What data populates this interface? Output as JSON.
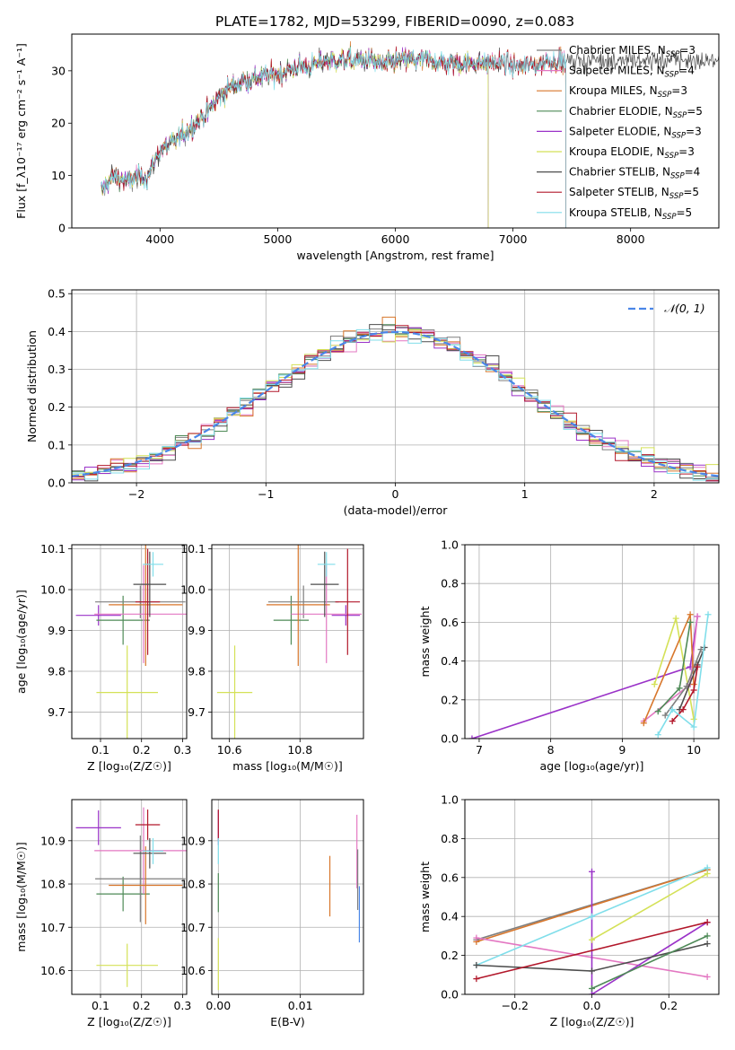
{
  "title": "PLATE=1782, MJD=53299, FIBERID=0090, z=0.083",
  "colors": {
    "chabrier_miles": "#7f7f7f",
    "salpeter_miles": "#e377c2",
    "kroupa_miles": "#d8772c",
    "chabrier_elodie": "#4e8a57",
    "salpeter_elodie": "#9a32c8",
    "kroupa_elodie": "#d4e157",
    "chabrier_stelib": "#4d4d4d",
    "salpeter_stelib": "#b2182b",
    "kroupa_stelib": "#80deea",
    "normal": "#4a86e8"
  },
  "chart_data": [
    {
      "id": "spectrum",
      "type": "line",
      "xlabel": "wavelength [Angstrom, rest frame]",
      "ylabel": "Flux [f_λ10⁻¹⁷ erg cm⁻² s⁻¹ A⁻¹]",
      "xlim": [
        3250,
        8750
      ],
      "ylim": [
        0,
        37
      ],
      "xticks": [
        4000,
        5000,
        6000,
        7000,
        8000
      ],
      "yticks": [
        0,
        10,
        20,
        30
      ],
      "grid": false,
      "legend_position": "top-right",
      "continuum": {
        "x": [
          3500,
          3600,
          3700,
          3800,
          3900,
          4000,
          4100,
          4200,
          4300,
          4400,
          4500,
          4600,
          4700,
          4800,
          4900,
          5000,
          5100,
          5200,
          5300,
          5400,
          5500,
          5600,
          5700,
          5800,
          5900,
          6000,
          6100,
          6200,
          6300,
          6400,
          6500,
          6600,
          6700,
          6800,
          6900,
          7000,
          7100,
          7200,
          7300,
          7400
        ],
        "y": [
          7,
          10,
          9,
          9.5,
          10,
          15,
          16,
          18,
          20,
          22,
          25,
          27,
          28,
          28.5,
          29,
          29.5,
          30,
          31,
          31,
          32,
          32,
          32,
          32,
          32,
          31,
          32,
          32,
          32,
          32,
          31.5,
          31.5,
          31.5,
          31.5,
          31.5,
          31.5,
          31,
          31,
          31,
          32,
          32
        ]
      },
      "series": [
        {
          "name": "Chabrier MILES, N_SSP=3",
          "color_key": "chabrier_miles",
          "x_end": 7450
        },
        {
          "name": "Salpeter MILES, N_SSP=4",
          "color_key": "salpeter_miles",
          "x_end": 7450
        },
        {
          "name": "Kroupa MILES, N_SSP=3",
          "color_key": "kroupa_miles",
          "x_end": 7450
        },
        {
          "name": "Chabrier ELODIE, N_SSP=5",
          "color_key": "chabrier_elodie",
          "x_end": 6790
        },
        {
          "name": "Salpeter ELODIE, N_SSP=3",
          "color_key": "salpeter_elodie",
          "x_end": 6790
        },
        {
          "name": "Kroupa ELODIE, N_SSP=3",
          "color_key": "kroupa_elodie",
          "x_end": 6790
        },
        {
          "name": "Chabrier STELIB, N_SSP=4",
          "color_key": "chabrier_stelib",
          "x_end": 8750
        },
        {
          "name": "Salpeter STELIB, N_SSP=5",
          "color_key": "salpeter_stelib",
          "x_end": 7450
        },
        {
          "name": "Kroupa STELIB, N_SSP=5",
          "color_key": "kroupa_stelib",
          "x_end": 7450
        }
      ]
    },
    {
      "id": "residuals",
      "type": "line",
      "xlabel": "(data-model)/error",
      "ylabel": "Normed distribution",
      "xlim": [
        -2.5,
        2.5
      ],
      "ylim": [
        0,
        0.51
      ],
      "xticks": [
        -2,
        -1,
        0,
        1,
        2
      ],
      "yticks": [
        0.0,
        0.1,
        0.2,
        0.3,
        0.4,
        0.5
      ],
      "grid": true,
      "legend_position": "top-right",
      "legend_label": "𝒩(0, 1)",
      "bin_width": 0.1,
      "reference_curve": "standard normal density"
    },
    {
      "id": "age_vs_Z",
      "type": "scatter",
      "xlabel": "Z [log₁₀(Z/Z☉)]",
      "ylabel": "age  [log₁₀(age/yr)]",
      "xlim": [
        0.03,
        0.31
      ],
      "ylim": [
        9.635,
        10.11
      ],
      "xticks": [
        0.1,
        0.2,
        0.3
      ],
      "yticks": [
        9.7,
        9.8,
        9.9,
        10.0,
        10.1
      ],
      "grid": true,
      "points": [
        {
          "color_key": "kroupa_elodie",
          "x": 0.165,
          "xerr": 0.075,
          "y": 9.748,
          "yerr": 0.115
        },
        {
          "color_key": "salpeter_elodie",
          "x": 0.095,
          "xerr": 0.055,
          "y": 9.937,
          "yerr": 0.025
        },
        {
          "color_key": "chabrier_elodie",
          "x": 0.155,
          "xerr": 0.065,
          "y": 9.925,
          "yerr": 0.06
        },
        {
          "color_key": "chabrier_miles",
          "x": 0.197,
          "xerr": 0.11,
          "y": 9.97,
          "yerr": 0.04
        },
        {
          "color_key": "salpeter_miles",
          "x": 0.205,
          "xerr": 0.12,
          "y": 9.94,
          "yerr": 0.12
        },
        {
          "color_key": "kroupa_miles",
          "x": 0.21,
          "xerr": 0.09,
          "y": 9.963,
          "yerr": 0.15
        },
        {
          "color_key": "salpeter_stelib",
          "x": 0.215,
          "xerr": 0.03,
          "y": 9.97,
          "yerr": 0.13
        },
        {
          "color_key": "chabrier_stelib",
          "x": 0.22,
          "xerr": 0.04,
          "y": 10.013,
          "yerr": 0.08
        },
        {
          "color_key": "kroupa_stelib",
          "x": 0.228,
          "xerr": 0.025,
          "y": 10.062,
          "yerr": 0.03
        }
      ]
    },
    {
      "id": "age_vs_mass",
      "type": "scatter",
      "xlabel": "mass [log₁₀(M/M☉)]",
      "ylabel": "",
      "xlim": [
        10.55,
        10.98
      ],
      "ylim": [
        9.635,
        10.11
      ],
      "xticks": [
        10.6,
        10.8
      ],
      "yticks": [
        9.7,
        9.8,
        9.9,
        10.0,
        10.1
      ],
      "grid": true,
      "points": [
        {
          "color_key": "kroupa_elodie",
          "x": 10.615,
          "xerr": 0.05,
          "y": 9.748,
          "yerr": 0.115
        },
        {
          "color_key": "salpeter_elodie",
          "x": 10.93,
          "xerr": 0.04,
          "y": 9.937,
          "yerr": 0.025
        },
        {
          "color_key": "chabrier_elodie",
          "x": 10.775,
          "xerr": 0.05,
          "y": 9.925,
          "yerr": 0.06
        },
        {
          "color_key": "chabrier_miles",
          "x": 10.81,
          "xerr": 0.1,
          "y": 9.97,
          "yerr": 0.04
        },
        {
          "color_key": "salpeter_miles",
          "x": 10.875,
          "xerr": 0.1,
          "y": 9.94,
          "yerr": 0.12
        },
        {
          "color_key": "kroupa_miles",
          "x": 10.795,
          "xerr": 0.09,
          "y": 9.963,
          "yerr": 0.15
        },
        {
          "color_key": "salpeter_stelib",
          "x": 10.935,
          "xerr": 0.035,
          "y": 9.97,
          "yerr": 0.13
        },
        {
          "color_key": "chabrier_stelib",
          "x": 10.87,
          "xerr": 0.04,
          "y": 10.013,
          "yerr": 0.08
        },
        {
          "color_key": "kroupa_stelib",
          "x": 10.875,
          "xerr": 0.025,
          "y": 10.062,
          "yerr": 0.03
        }
      ]
    },
    {
      "id": "weight_vs_age",
      "type": "line",
      "xlabel": "age  [log₁₀(age/yr)]",
      "ylabel": "mass weight",
      "xlim": [
        6.8,
        10.35
      ],
      "ylim": [
        0,
        1.0
      ],
      "xticks": [
        7,
        8,
        9,
        10
      ],
      "yticks": [
        0.0,
        0.2,
        0.4,
        0.6,
        0.8,
        1.0
      ],
      "grid": true,
      "series": [
        {
          "color_key": "salpeter_elodie",
          "x": [
            6.9,
            9.95,
            10.05
          ],
          "y": [
            0.0,
            0.37,
            0.63
          ]
        },
        {
          "color_key": "kroupa_elodie",
          "x": [
            9.45,
            9.75,
            10.0
          ],
          "y": [
            0.28,
            0.62,
            0.1
          ]
        },
        {
          "color_key": "salpeter_miles",
          "x": [
            9.3,
            9.95,
            10.05
          ],
          "y": [
            0.09,
            0.28,
            0.63
          ]
        },
        {
          "color_key": "kroupa_miles",
          "x": [
            9.3,
            9.95,
            10.0
          ],
          "y": [
            0.08,
            0.64,
            0.28
          ]
        },
        {
          "color_key": "chabrier_miles",
          "x": [
            9.6,
            9.9,
            10.1
          ],
          "y": [
            0.12,
            0.27,
            0.46
          ]
        },
        {
          "color_key": "chabrier_elodie",
          "x": [
            9.5,
            9.8,
            9.95
          ],
          "y": [
            0.14,
            0.26,
            0.6
          ]
        },
        {
          "color_key": "chabrier_stelib",
          "x": [
            9.8,
            10.05,
            10.15
          ],
          "y": [
            0.15,
            0.38,
            0.47
          ]
        },
        {
          "color_key": "salpeter_stelib",
          "x": [
            9.7,
            9.85,
            10.0,
            10.05
          ],
          "y": [
            0.09,
            0.15,
            0.25,
            0.37
          ]
        },
        {
          "color_key": "kroupa_stelib",
          "x": [
            9.5,
            9.7,
            10.0,
            10.2
          ],
          "y": [
            0.02,
            0.15,
            0.06,
            0.64
          ]
        }
      ]
    },
    {
      "id": "mass_vs_Z",
      "type": "scatter",
      "xlabel": "Z [log₁₀(Z/Z☉)]",
      "ylabel": "mass [log₁₀(M/M☉)]",
      "xlim": [
        0.03,
        0.31
      ],
      "ylim": [
        10.545,
        10.995
      ],
      "xticks": [
        0.1,
        0.2,
        0.3
      ],
      "yticks": [
        10.6,
        10.7,
        10.8,
        10.9
      ],
      "grid": true,
      "points": [
        {
          "color_key": "kroupa_elodie",
          "x": 0.165,
          "xerr": 0.075,
          "y": 10.612,
          "yerr": 0.05
        },
        {
          "color_key": "salpeter_elodie",
          "x": 0.095,
          "xerr": 0.055,
          "y": 10.93,
          "yerr": 0.04
        },
        {
          "color_key": "chabrier_elodie",
          "x": 0.155,
          "xerr": 0.065,
          "y": 10.777,
          "yerr": 0.04
        },
        {
          "color_key": "chabrier_miles",
          "x": 0.197,
          "xerr": 0.11,
          "y": 10.812,
          "yerr": 0.1
        },
        {
          "color_key": "salpeter_miles",
          "x": 0.205,
          "xerr": 0.12,
          "y": 10.877,
          "yerr": 0.1
        },
        {
          "color_key": "kroupa_miles",
          "x": 0.21,
          "xerr": 0.09,
          "y": 10.797,
          "yerr": 0.09
        },
        {
          "color_key": "salpeter_stelib",
          "x": 0.215,
          "xerr": 0.03,
          "y": 10.937,
          "yerr": 0.035
        },
        {
          "color_key": "chabrier_stelib",
          "x": 0.22,
          "xerr": 0.04,
          "y": 10.871,
          "yerr": 0.035
        },
        {
          "color_key": "kroupa_stelib",
          "x": 0.228,
          "xerr": 0.025,
          "y": 10.876,
          "yerr": 0.03
        }
      ]
    },
    {
      "id": "mass_vs_ebv",
      "type": "scatter",
      "xlabel": "E(B-V)",
      "ylabel": "",
      "xlim": [
        -0.0008,
        0.0177
      ],
      "ylim": [
        10.545,
        10.995
      ],
      "xticks": [
        0.0,
        0.01
      ],
      "xtick_labels": [
        "0.00",
        "0.01"
      ],
      "yticks": [
        10.6,
        10.7,
        10.8,
        10.9
      ],
      "grid": true,
      "points": [
        {
          "color_key": "kroupa_elodie",
          "x": 0.0,
          "y": 10.615,
          "yerr": 0.06
        },
        {
          "color_key": "chabrier_elodie",
          "x": 0.0,
          "y": 10.78,
          "yerr": 0.045
        },
        {
          "color_key": "salpeter_elodie",
          "x": 0.0,
          "y": 10.93,
          "yerr": 0.04
        },
        {
          "color_key": "salpeter_stelib",
          "x": 0.0,
          "y": 10.937,
          "yerr": 0.035
        },
        {
          "color_key": "kroupa_stelib",
          "x": 0.0,
          "y": 10.876,
          "yerr": 0.03
        },
        {
          "color_key": "kroupa_miles",
          "x": 0.0136,
          "y": 10.795,
          "yerr": 0.07
        },
        {
          "color_key": "salpeter_miles",
          "x": 0.0169,
          "y": 10.875,
          "yerr": 0.085
        },
        {
          "color_key": "chabrier_miles",
          "x": 0.017,
          "y": 10.81,
          "yerr": 0.07
        },
        {
          "color_key": "normal",
          "x": 0.0172,
          "y": 10.73,
          "yerr": 0.065
        }
      ]
    },
    {
      "id": "weight_vs_Z",
      "type": "line",
      "xlabel": "Z [log₁₀(Z/Z☉)]",
      "ylabel": "mass weight",
      "xlim": [
        -0.33,
        0.33
      ],
      "ylim": [
        0,
        1.0
      ],
      "xticks": [
        -0.2,
        0.0,
        0.2
      ],
      "yticks": [
        0.0,
        0.2,
        0.4,
        0.6,
        0.8,
        1.0
      ],
      "grid": true,
      "series": [
        {
          "color_key": "chabrier_miles",
          "x": [
            -0.3,
            0.3
          ],
          "y": [
            0.28,
            0.64
          ]
        },
        {
          "color_key": "kroupa_miles",
          "x": [
            -0.3,
            0.3
          ],
          "y": [
            0.27,
            0.64
          ]
        },
        {
          "color_key": "salpeter_miles",
          "x": [
            -0.3,
            0.3
          ],
          "y": [
            0.29,
            0.09
          ]
        },
        {
          "color_key": "salpeter_elodie",
          "x": [
            0.0,
            0.0,
            0.3
          ],
          "y": [
            0.63,
            0.0,
            0.37
          ]
        },
        {
          "color_key": "kroupa_elodie",
          "x": [
            0.0,
            0.3
          ],
          "y": [
            0.28,
            0.62
          ]
        },
        {
          "color_key": "kroupa_stelib",
          "x": [
            -0.3,
            0.0,
            0.3
          ],
          "y": [
            0.15,
            0.4,
            0.65
          ]
        },
        {
          "color_key": "chabrier_stelib",
          "x": [
            -0.3,
            0.0,
            0.3
          ],
          "y": [
            0.15,
            0.12,
            0.26
          ]
        },
        {
          "color_key": "salpeter_stelib",
          "x": [
            -0.3,
            0.3
          ],
          "y": [
            0.08,
            0.37
          ]
        },
        {
          "color_key": "chabrier_elodie",
          "x": [
            0.0,
            0.3
          ],
          "y": [
            0.03,
            0.3
          ]
        }
      ]
    }
  ]
}
